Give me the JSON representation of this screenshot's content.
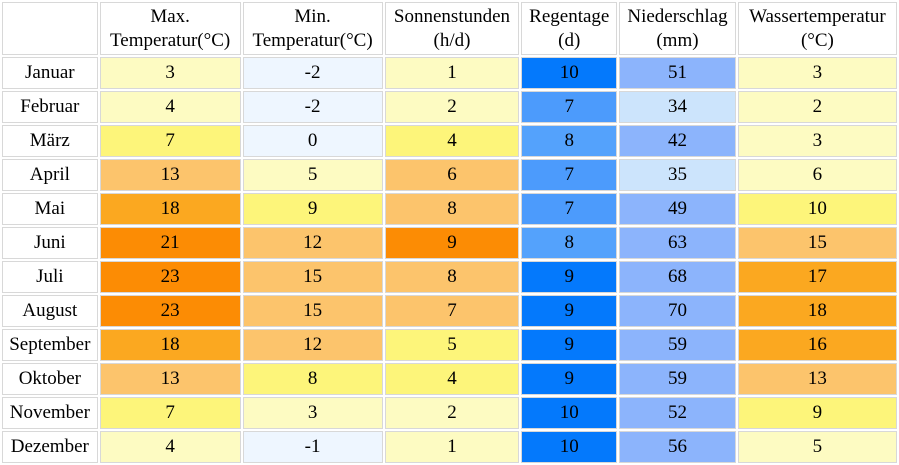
{
  "headers": {
    "month": "",
    "max_temp": [
      "Max.",
      "Temperatur(°C)"
    ],
    "min_temp": [
      "Min.",
      "Temperatur(°C)"
    ],
    "sun": [
      "Sonnenstunden",
      "(h/d)"
    ],
    "rain_days": [
      "Regentage",
      "(d)"
    ],
    "precip": [
      "Niederschlag",
      "(mm)"
    ],
    "water_temp": [
      "Wassertemperatur",
      "(°C)"
    ]
  },
  "rows": [
    {
      "month": "Januar",
      "max": "3",
      "min": "-2",
      "sun": "1",
      "rain": "10",
      "precip": "51",
      "water": "3"
    },
    {
      "month": "Februar",
      "max": "4",
      "min": "-2",
      "sun": "2",
      "rain": "7",
      "precip": "34",
      "water": "2"
    },
    {
      "month": "März",
      "max": "7",
      "min": "0",
      "sun": "4",
      "rain": "8",
      "precip": "42",
      "water": "3"
    },
    {
      "month": "April",
      "max": "13",
      "min": "5",
      "sun": "6",
      "rain": "7",
      "precip": "35",
      "water": "6"
    },
    {
      "month": "Mai",
      "max": "18",
      "min": "9",
      "sun": "8",
      "rain": "7",
      "precip": "49",
      "water": "10"
    },
    {
      "month": "Juni",
      "max": "21",
      "min": "12",
      "sun": "9",
      "rain": "8",
      "precip": "63",
      "water": "15"
    },
    {
      "month": "Juli",
      "max": "23",
      "min": "15",
      "sun": "8",
      "rain": "9",
      "precip": "68",
      "water": "17"
    },
    {
      "month": "August",
      "max": "23",
      "min": "15",
      "sun": "7",
      "rain": "9",
      "precip": "70",
      "water": "18"
    },
    {
      "month": "September",
      "max": "18",
      "min": "12",
      "sun": "5",
      "rain": "9",
      "precip": "59",
      "water": "16"
    },
    {
      "month": "Oktober",
      "max": "13",
      "min": "8",
      "sun": "4",
      "rain": "9",
      "precip": "59",
      "water": "13"
    },
    {
      "month": "November",
      "max": "7",
      "min": "3",
      "sun": "2",
      "rain": "10",
      "precip": "52",
      "water": "9"
    },
    {
      "month": "Dezember",
      "max": "4",
      "min": "-1",
      "sun": "1",
      "rain": "10",
      "precip": "56",
      "water": "5"
    }
  ],
  "colors": {
    "temp_very_cold": "#eef6ff",
    "temp_cold": "#fdfbc2",
    "temp_cool": "#fdf890",
    "temp_mild": "#fdf57a",
    "temp_warm": "#fcc46c",
    "temp_hot": "#fba820",
    "temp_very_hot": "#fc8c04",
    "sun_low": "#fdfbc2",
    "sun_mid": "#fdf57a",
    "sun_high": "#fcc46c",
    "sun_max": "#fc8c04",
    "rain_high": "#0479fc",
    "rain_mid": "#54a2fc",
    "rain_low": "#4c9bfc",
    "precip_low": "#cce4fc",
    "precip_mid": "#8cb4fc",
    "precip_high": "#8cb4fc"
  }
}
